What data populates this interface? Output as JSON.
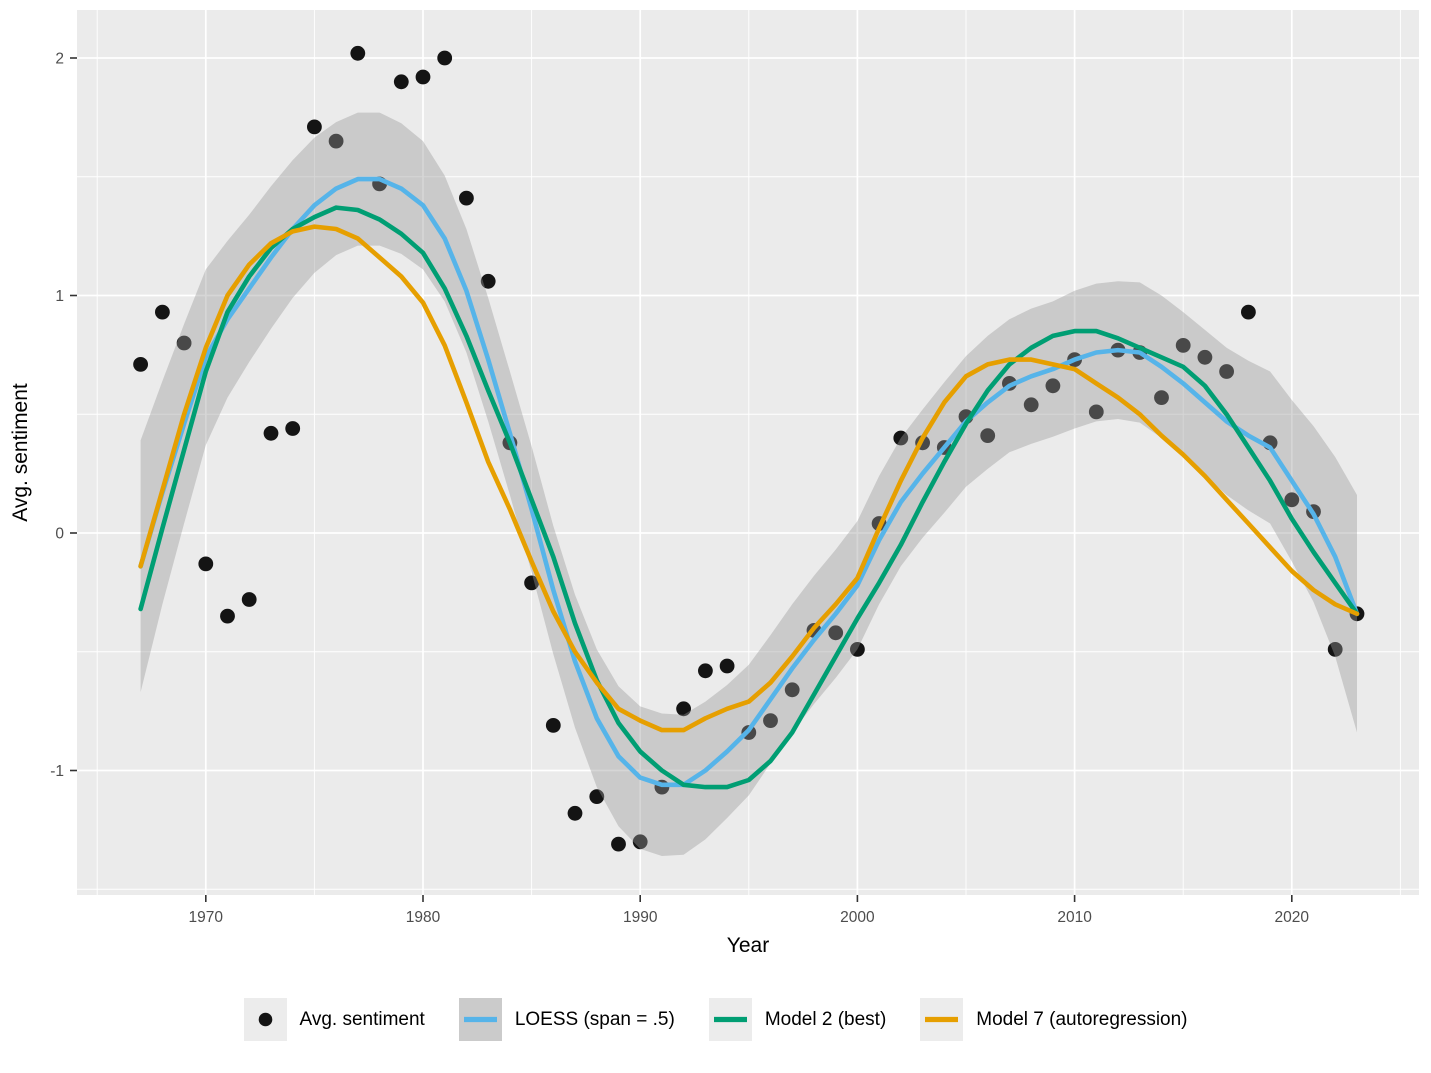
{
  "colors": {
    "panel_background": "#EBEBEB",
    "grid": "#FFFFFF",
    "outer_background": "#FFFFFF",
    "points": "#141414",
    "loess": "#56B4E9",
    "model2": "#009E73",
    "model7": "#E69F00",
    "ribbon_fill": "#999999",
    "ribbon_opacity": 0.4,
    "tick_text": "#4D4D4D",
    "tick_mark": "#333333",
    "legend_key_fill": "#ECECEC",
    "legend_key_ribbon_fill": "#CBCBCB"
  },
  "legend": {
    "items": [
      {
        "label": "Avg. sentiment",
        "key": "point",
        "color_ref": "points"
      },
      {
        "label": "LOESS (span = .5)",
        "key": "ribbon-line",
        "color_ref": "loess"
      },
      {
        "label": "Model 2 (best)",
        "key": "line",
        "color_ref": "model2"
      },
      {
        "label": "Model 7 (autoregression)",
        "key": "line",
        "color_ref": "model7"
      }
    ]
  },
  "chart_data": {
    "type": "line",
    "title": "",
    "xlabel": "Year",
    "ylabel": "Avg. sentiment",
    "xlim": [
      1964.4,
      2025.9
    ],
    "ylim": [
      -1.53,
      2.2
    ],
    "x_major_ticks": [
      1970,
      1980,
      1990,
      2000,
      2010,
      2020
    ],
    "x_minor_ticks": [
      1965,
      1975,
      1985,
      1995,
      2005,
      2015,
      2025
    ],
    "y_major_ticks": [
      -1,
      0,
      1,
      2
    ],
    "y_minor_ticks": [
      -1.5,
      -0.5,
      0.5,
      1.5
    ],
    "grid": true,
    "legend_position": "bottom",
    "years": [
      1967,
      1968,
      1969,
      1970,
      1971,
      1972,
      1973,
      1974,
      1975,
      1976,
      1977,
      1978,
      1979,
      1980,
      1981,
      1982,
      1983,
      1984,
      1985,
      1986,
      1987,
      1988,
      1989,
      1990,
      1991,
      1992,
      1993,
      1994,
      1995,
      1996,
      1997,
      1998,
      1999,
      2000,
      2001,
      2002,
      2003,
      2004,
      2005,
      2006,
      2007,
      2008,
      2009,
      2010,
      2011,
      2012,
      2013,
      2014,
      2015,
      2016,
      2017,
      2018,
      2019,
      2020,
      2021,
      2022,
      2023
    ],
    "series": [
      {
        "name": "Avg. sentiment",
        "kind": "scatter",
        "values": [
          0.71,
          0.93,
          0.8,
          -0.13,
          -0.35,
          -0.28,
          0.42,
          0.44,
          1.71,
          1.65,
          2.02,
          1.47,
          1.9,
          1.92,
          2.0,
          1.41,
          1.06,
          0.38,
          -0.21,
          -0.81,
          -1.18,
          -1.11,
          -1.31,
          -1.3,
          -1.07,
          -0.74,
          -0.58,
          -0.56,
          -0.84,
          -0.79,
          -0.66,
          -0.41,
          -0.42,
          -0.49,
          0.04,
          0.4,
          0.38,
          0.36,
          0.49,
          0.41,
          0.63,
          0.54,
          0.62,
          0.73,
          0.51,
          0.77,
          0.76,
          0.57,
          0.79,
          0.74,
          0.68,
          0.93,
          0.38,
          0.14,
          0.09,
          -0.49,
          -0.34
        ]
      },
      {
        "name": "LOESS (span = .5)",
        "kind": "line",
        "values": [
          -0.14,
          0.17,
          0.46,
          0.74,
          0.9,
          1.03,
          1.16,
          1.28,
          1.38,
          1.45,
          1.49,
          1.49,
          1.45,
          1.38,
          1.24,
          1.02,
          0.73,
          0.42,
          0.1,
          -0.24,
          -0.54,
          -0.78,
          -0.94,
          -1.03,
          -1.06,
          -1.06,
          -1.0,
          -0.92,
          -0.83,
          -0.7,
          -0.57,
          -0.45,
          -0.34,
          -0.22,
          -0.03,
          0.13,
          0.25,
          0.36,
          0.47,
          0.55,
          0.62,
          0.66,
          0.69,
          0.73,
          0.76,
          0.77,
          0.76,
          0.7,
          0.63,
          0.55,
          0.47,
          0.41,
          0.36,
          0.22,
          0.08,
          -0.1,
          -0.34
        ],
        "ci_halfwidth": [
          0.53,
          0.47,
          0.42,
          0.37,
          0.33,
          0.31,
          0.3,
          0.29,
          0.285,
          0.28,
          0.28,
          0.28,
          0.275,
          0.27,
          0.265,
          0.26,
          0.26,
          0.26,
          0.265,
          0.27,
          0.28,
          0.29,
          0.295,
          0.3,
          0.3,
          0.295,
          0.29,
          0.28,
          0.275,
          0.27,
          0.27,
          0.27,
          0.27,
          0.27,
          0.27,
          0.27,
          0.27,
          0.275,
          0.275,
          0.28,
          0.28,
          0.285,
          0.285,
          0.29,
          0.29,
          0.29,
          0.295,
          0.3,
          0.3,
          0.305,
          0.31,
          0.315,
          0.32,
          0.34,
          0.37,
          0.42,
          0.5
        ]
      },
      {
        "name": "Model 2 (best)",
        "kind": "line",
        "values": [
          -0.32,
          0.02,
          0.35,
          0.68,
          0.93,
          1.08,
          1.2,
          1.28,
          1.33,
          1.37,
          1.36,
          1.32,
          1.26,
          1.18,
          1.03,
          0.83,
          0.6,
          0.38,
          0.14,
          -0.1,
          -0.38,
          -0.62,
          -0.8,
          -0.92,
          -1.0,
          -1.06,
          -1.07,
          -1.07,
          -1.04,
          -0.96,
          -0.84,
          -0.68,
          -0.52,
          -0.36,
          -0.21,
          -0.05,
          0.13,
          0.3,
          0.46,
          0.6,
          0.71,
          0.78,
          0.83,
          0.85,
          0.85,
          0.82,
          0.78,
          0.74,
          0.7,
          0.62,
          0.5,
          0.36,
          0.22,
          0.06,
          -0.08,
          -0.21,
          -0.34
        ]
      },
      {
        "name": "Model 7 (autoregression)",
        "kind": "line",
        "values": [
          -0.14,
          0.18,
          0.5,
          0.78,
          1.0,
          1.13,
          1.22,
          1.27,
          1.29,
          1.28,
          1.24,
          1.16,
          1.08,
          0.97,
          0.79,
          0.55,
          0.3,
          0.1,
          -0.12,
          -0.33,
          -0.5,
          -0.63,
          -0.74,
          -0.79,
          -0.83,
          -0.83,
          -0.78,
          -0.74,
          -0.71,
          -0.63,
          -0.52,
          -0.4,
          -0.3,
          -0.19,
          0.02,
          0.22,
          0.4,
          0.55,
          0.66,
          0.71,
          0.73,
          0.73,
          0.71,
          0.69,
          0.63,
          0.57,
          0.5,
          0.41,
          0.33,
          0.24,
          0.14,
          0.04,
          -0.06,
          -0.16,
          -0.24,
          -0.3,
          -0.34
        ]
      }
    ]
  }
}
